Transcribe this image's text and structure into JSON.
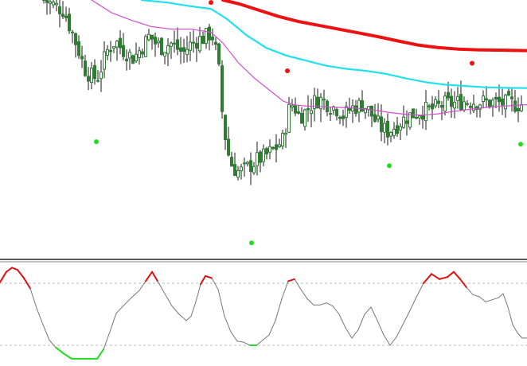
{
  "colors": {
    "background": "#ffffff",
    "candle_body": "#2e7d32",
    "candle_wick": "#1a1a1a",
    "ma_fast": "#d24bd2",
    "ma_mid": "#22e0ec",
    "ma_slow": "#ee1111",
    "signal_high": "#ee1111",
    "signal_low": "#22dd22",
    "osc_neutral": "#777777",
    "osc_high": "#dd1111",
    "osc_low": "#22dd22",
    "separator": "#222222",
    "level_line": "#bbbbbb"
  },
  "chart_data": [
    {
      "type": "candlestick",
      "pane": "price",
      "ylim": [
        0,
        1000
      ],
      "close_path": [
        [
          55,
          1000
        ],
        [
          80,
          960
        ],
        [
          92,
          860
        ],
        [
          100,
          790
        ],
        [
          106,
          730
        ],
        [
          114,
          700
        ],
        [
          122,
          690
        ],
        [
          128,
          740
        ],
        [
          135,
          800
        ],
        [
          145,
          840
        ],
        [
          152,
          810
        ],
        [
          160,
          790
        ],
        [
          168,
          770
        ],
        [
          175,
          800
        ],
        [
          182,
          830
        ],
        [
          188,
          860
        ],
        [
          195,
          830
        ],
        [
          205,
          810
        ],
        [
          214,
          830
        ],
        [
          222,
          810
        ],
        [
          230,
          790
        ],
        [
          238,
          820
        ],
        [
          246,
          840
        ],
        [
          256,
          850
        ],
        [
          266,
          870
        ],
        [
          274,
          760
        ],
        [
          279,
          560
        ],
        [
          285,
          410
        ],
        [
          292,
          340
        ],
        [
          300,
          320
        ],
        [
          308,
          330
        ],
        [
          316,
          350
        ],
        [
          324,
          370
        ],
        [
          332,
          380
        ],
        [
          340,
          400
        ],
        [
          348,
          420
        ],
        [
          356,
          450
        ],
        [
          362,
          560
        ],
        [
          368,
          590
        ],
        [
          376,
          540
        ],
        [
          384,
          560
        ],
        [
          392,
          590
        ],
        [
          400,
          610
        ],
        [
          408,
          600
        ],
        [
          416,
          580
        ],
        [
          424,
          570
        ],
        [
          432,
          540
        ],
        [
          440,
          570
        ],
        [
          448,
          580
        ],
        [
          456,
          590
        ],
        [
          464,
          560
        ],
        [
          472,
          520
        ],
        [
          480,
          490
        ],
        [
          488,
          480
        ],
        [
          496,
          500
        ],
        [
          504,
          520
        ],
        [
          512,
          540
        ],
        [
          520,
          550
        ],
        [
          528,
          560
        ],
        [
          536,
          565
        ],
        [
          544,
          570
        ],
        [
          552,
          580
        ],
        [
          560,
          590
        ],
        [
          570,
          590
        ],
        [
          580,
          600
        ],
        [
          590,
          600
        ],
        [
          600,
          598
        ],
        [
          610,
          596
        ],
        [
          620,
          594
        ],
        [
          630,
          592
        ],
        [
          640,
          590
        ],
        [
          650,
          588
        ],
        [
          658,
          588
        ]
      ],
      "ma_fast": [
        [
          115,
          1000
        ],
        [
          140,
          950
        ],
        [
          165,
          920
        ],
        [
          190,
          895
        ],
        [
          215,
          885
        ],
        [
          240,
          885
        ],
        [
          265,
          872
        ],
        [
          280,
          830
        ],
        [
          300,
          750
        ],
        [
          320,
          690
        ],
        [
          340,
          640
        ],
        [
          356,
          600
        ],
        [
          370,
          585
        ],
        [
          390,
          580
        ],
        [
          410,
          578
        ],
        [
          430,
          575
        ],
        [
          450,
          572
        ],
        [
          470,
          565
        ],
        [
          490,
          555
        ],
        [
          510,
          548
        ],
        [
          530,
          545
        ],
        [
          550,
          550
        ],
        [
          570,
          560
        ],
        [
          590,
          568
        ],
        [
          610,
          575
        ],
        [
          630,
          580
        ],
        [
          650,
          584
        ],
        [
          662,
          586
        ]
      ],
      "ma_mid": [
        [
          178,
          1000
        ],
        [
          210,
          990
        ],
        [
          240,
          975
        ],
        [
          265,
          965
        ],
        [
          285,
          925
        ],
        [
          310,
          860
        ],
        [
          335,
          810
        ],
        [
          360,
          780
        ],
        [
          385,
          760
        ],
        [
          410,
          740
        ],
        [
          435,
          728
        ],
        [
          460,
          720
        ],
        [
          485,
          708
        ],
        [
          510,
          690
        ],
        [
          535,
          675
        ],
        [
          560,
          665
        ],
        [
          585,
          660
        ],
        [
          610,
          655
        ],
        [
          635,
          653
        ],
        [
          662,
          652
        ]
      ],
      "ma_slow": [
        [
          280,
          1000
        ],
        [
          300,
          985
        ],
        [
          325,
          960
        ],
        [
          350,
          935
        ],
        [
          375,
          915
        ],
        [
          400,
          900
        ],
        [
          425,
          885
        ],
        [
          450,
          870
        ],
        [
          475,
          855
        ],
        [
          500,
          838
        ],
        [
          525,
          822
        ],
        [
          550,
          812
        ],
        [
          575,
          806
        ],
        [
          600,
          803
        ],
        [
          625,
          802
        ],
        [
          662,
          800
        ]
      ],
      "signals_high": [
        [
          265,
          990
        ],
        [
          361,
          720
        ],
        [
          593,
          750
        ]
      ],
      "signals_low": [
        [
          121,
          440
        ],
        [
          316,
          40
        ],
        [
          489,
          345
        ],
        [
          654,
          430
        ]
      ]
    },
    {
      "type": "line",
      "pane": "oscillator",
      "ylim": [
        0,
        100
      ],
      "levels": [
        80,
        20
      ],
      "values": [
        [
          0,
          81
        ],
        [
          8,
          91
        ],
        [
          15,
          95
        ],
        [
          22,
          93
        ],
        [
          30,
          85
        ],
        [
          38,
          75
        ],
        [
          46,
          56
        ],
        [
          54,
          40
        ],
        [
          62,
          25
        ],
        [
          70,
          18
        ],
        [
          80,
          12
        ],
        [
          90,
          7
        ],
        [
          100,
          7
        ],
        [
          110,
          7
        ],
        [
          122,
          7
        ],
        [
          130,
          16
        ],
        [
          138,
          33
        ],
        [
          146,
          51
        ],
        [
          156,
          59
        ],
        [
          165,
          66
        ],
        [
          175,
          73
        ],
        [
          183,
          82
        ],
        [
          191,
          91
        ],
        [
          198,
          82
        ],
        [
          207,
          70
        ],
        [
          216,
          58
        ],
        [
          225,
          50
        ],
        [
          234,
          44
        ],
        [
          240,
          48
        ],
        [
          246,
          62
        ],
        [
          252,
          79
        ],
        [
          258,
          87
        ],
        [
          266,
          85
        ],
        [
          274,
          74
        ],
        [
          282,
          48
        ],
        [
          290,
          33
        ],
        [
          298,
          24
        ],
        [
          306,
          23
        ],
        [
          314,
          20
        ],
        [
          322,
          20
        ],
        [
          330,
          25
        ],
        [
          338,
          30
        ],
        [
          346,
          44
        ],
        [
          354,
          65
        ],
        [
          362,
          82
        ],
        [
          370,
          84
        ],
        [
          378,
          74
        ],
        [
          386,
          65
        ],
        [
          394,
          59
        ],
        [
          402,
          59
        ],
        [
          410,
          61
        ],
        [
          418,
          58
        ],
        [
          426,
          50
        ],
        [
          434,
          37
        ],
        [
          442,
          27
        ],
        [
          450,
          35
        ],
        [
          458,
          50
        ],
        [
          466,
          57
        ],
        [
          474,
          44
        ],
        [
          482,
          30
        ],
        [
          490,
          20
        ],
        [
          498,
          28
        ],
        [
          506,
          40
        ],
        [
          514,
          52
        ],
        [
          522,
          65
        ],
        [
          532,
          80
        ],
        [
          542,
          89
        ],
        [
          552,
          84
        ],
        [
          562,
          86
        ],
        [
          570,
          91
        ],
        [
          578,
          84
        ],
        [
          586,
          76
        ],
        [
          594,
          69
        ],
        [
          602,
          67
        ],
        [
          610,
          62
        ],
        [
          618,
          64
        ],
        [
          626,
          66
        ],
        [
          632,
          70
        ],
        [
          638,
          57
        ],
        [
          644,
          40
        ],
        [
          650,
          32
        ],
        [
          656,
          27
        ],
        [
          662,
          27
        ]
      ]
    }
  ]
}
